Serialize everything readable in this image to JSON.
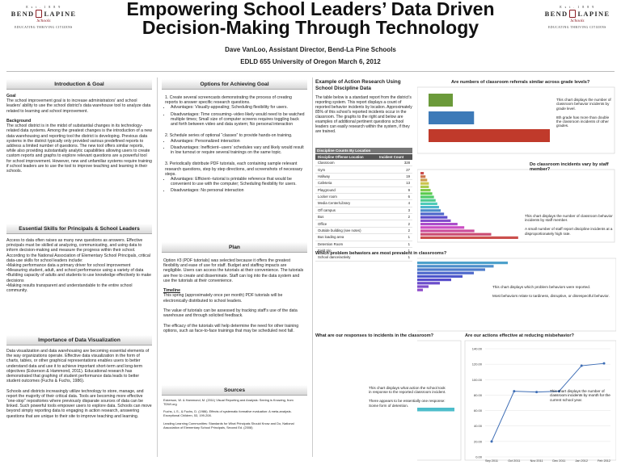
{
  "header": {
    "title_line1": "Empowering School Leaders’ Data Driven",
    "title_line2": "Decision-Making Through Technology",
    "authors": "Dave VanLoo, Assistant Director, Bend-La Pine Schools",
    "venue": "EDLD 655 University of Oregon March 6, 2012",
    "logo": {
      "est": "E s t . 1 8 8 9",
      "name_left": "BEND",
      "name_right": "LAPINE",
      "schools": "Schools",
      "tagline": "EDUCATING THRIVING CITIZENS"
    }
  },
  "col1": {
    "intro_header": "Introduction & Goal",
    "goal_label": "Goal",
    "goal_text": "The school improvement goal is to increase administrators’ and school leaders’ ability to use the school district’s data warehouse tool to analyze data related to learning and school improvement.",
    "background_label": "Background",
    "background_text": "The school district is in the midst of substantial changes in its technology-related data systems. Among the greatest changes is the introduction of a new data warehousing and reporting tool the district is developing. Previous data systems in the district typically only provided various predefined reports to address a limited number of questions. The new tool offers similar reports, while also providing substantially analytic capabilities allowing users to create custom reports and graphs to explore relevant questions are a powerful tool for school improvement. However, new and unfamiliar systems require training if school leaders are to use the tool to improve teaching and learning in their schools.",
    "skills_header": "Essential Skills for Principals & School Leaders",
    "skills_intro": "Access to data often raises as many new questions as answers. Effective principals must be skilled at analyzing, communicating, and using data to inform decision-making and measure the progress within their school. According to the National Association of Elementary School Principals, critical data-use skills for school leaders include:",
    "skills_list": [
      "•Making performance data a primary driver for school improvement",
      "•Measuring student, adult, and school performance using a variety of data",
      "•Building capacity of adults and students to use knowledge effectively to make decisions",
      "•Making results transparent and understandable to the entire school community."
    ],
    "viz_header": "Importance of Data Visualization",
    "viz_p1": "Data visualization and data warehousing are becoming essential elements of the way organizations operate. Effective data visualization in the form of charts, tables, or other graphical representations enables users to better understand data and use it to achieve important short-term and long-term objectives (Eckerson & Hammond, 2011). Educational research has demonstrated that graphing of student performance data leads to better student outcomes (Fuchs & Fuchs, 1986).",
    "viz_p2": "Schools and districts increasingly utilize technology to store, manage, and report the majority of their critical data. Tools are becoming more effective “one-stop” repositories where previously disparate sources of data can be linked. Such powerful tools empower users to explore data. Schools can move beyond simply reporting data to engaging in action research, answering questions that are unique to their site to improve teaching and learning."
  },
  "col2": {
    "options_header": "Options for Achieving Goal",
    "options": [
      {
        "lead": "1. Create several screencasts demonstrating the process of creating reports to answer specific research questions.",
        "adv": "Advantages: Visually-appealing; Scheduling flexibility for users.",
        "dis": "Disadvantages: Time consuming--video likely would need to be watched multiple times; Small size of computer screens requires toggling back and forth between video and data system; No personal interaction"
      },
      {
        "lead": "2. Schedule series of optional “classes” to provide hands-on training.",
        "adv": "Advantages: Personalized interaction",
        "dis": "Disadvantages: Inefficient--users’ schedules vary and likely would result in low turnout or require several trainings on the same topic."
      },
      {
        "lead": "3. Periodically distribute PDF tutorials, each containing sample relevant research questions, step by step directions, and screenshots of necessary steps.",
        "adv": "Advantages: Efficient--tutorial is printable reference that would be convenient to use with the computer; Scheduling flexibility for users.",
        "dis": "Disadvantages: No personal interaction"
      }
    ],
    "plan_header": "Plan",
    "plan_p1": "Option #3 (PDF tutorials) was selected because it offers the greatest flexibility and ease of use for staff. Budget and staffing impacts are negligible. Users can access the tutorials at their convenience. The tutorials are free to create and disseminate. Staff can log into the data system and use the tutorials at their convenience.",
    "timeline_label": "Timeline",
    "timeline_text": "This spring (approximately once per month) PDF tutorials will be electronically distributed to school leaders.",
    "plan_p2": "The value of tutorials can be assessed by tracking staff’s use of the data warehouse and through solicited feedback.",
    "plan_p3": "The efficacy of the tutorials will help determine the need for other training options, such as face-to-face trainings that may be scheduled next fall.",
    "sources_header": "Sources",
    "sources": [
      "Eckerson, W. & Hammond, M. (2011) Visual Reporting and Analysis: Seeing is Knowing, from TDWI.org",
      "Fuchs, L.S., & Fuchs, D. (1986). Effects of systematic formative evaluation: A meta-analysis. Exceptional Children, 53, 199-208.",
      "Leading Learning Communities: Standards for What Principals Should Know and Do, National Association of Elementary School Principals, Second Ed. (2008)"
    ]
  },
  "col3": {
    "example_header": "Example of Action Research Using School Discipline Data",
    "example_text": "The table below is a standard report from the district’s reporting system. This report displays a count of reported behavior incidents by location. Approximately 85% of this school’s reported incidents occur in the classroom. The graphs to the right and below are examples of additional pertinent questions school leaders can easily research within the system, if they are trained.",
    "table_caption": "Discipline Counts By Location",
    "table_headers": [
      "Discipline Offense Location",
      "Incident Count"
    ],
    "table_rows": [
      [
        "Classroom",
        "328"
      ],
      [
        "Gym",
        "27"
      ],
      [
        "Hallway",
        "19"
      ],
      [
        "Cafeteria",
        "13"
      ],
      [
        "Playground",
        "9"
      ],
      [
        "Locker room",
        "6"
      ],
      [
        "Media Center/Library",
        "4"
      ],
      [
        "Off campus",
        "3"
      ],
      [
        "Bus",
        "2"
      ],
      [
        "Office",
        "2"
      ],
      [
        "Outside building (see notes)",
        "2"
      ],
      [
        "Bus loading area",
        "1"
      ],
      [
        "Detention Room",
        "1"
      ],
      [
        "Field trip",
        "1"
      ],
      [
        "School dance/activity",
        "1"
      ]
    ]
  },
  "charts": {
    "c1_title": "Are numbers of classroom referrals similar across grade levels?",
    "c1_note1": "This chart displays the number of classroom behavior incidents by grade level.",
    "c1_note2": "8th grade has more than double the classroom incidents of other grades.",
    "c2_title": "Do classroom incidents vary by staff member?",
    "c2_note1": "This chart displays the number of classroom behavior incidents by staff member.",
    "c2_note2": "A small number of staff report discipline incidents at a disproportionately high rate.",
    "c3_title": "Which problem behaviors are most prevalent in classrooms?",
    "c3_note1": "This chart displays which problem behaviors were reported.",
    "c3_note2": "Most behaviors relate to tardiness, disruptive, or disrespectful behavior.",
    "c4_title": "What are our responses to incidents in the classroom?",
    "c4_note1": "This chart displays what action the school took in response to the reported classroom incident.",
    "c4_note2": "There appears to be essentially one response: Some form of detention.",
    "c5_title": "Are our actions effective at reducing misbehavior?",
    "c5_note": "This chart displays the number of classroom incidents by month for the current school year."
  },
  "chart_data": [
    {
      "type": "bar",
      "title": "Are numbers of classroom referrals similar across grade levels?",
      "categories": [
        "6",
        "7",
        "8"
      ],
      "values": [
        40,
        75,
        200
      ]
    },
    {
      "type": "bar",
      "title": "Do classroom incidents vary by staff member?",
      "values": [
        2,
        3,
        4,
        5,
        5,
        6,
        7,
        8,
        9,
        10,
        11,
        12,
        14,
        16,
        18,
        22,
        26,
        32,
        42,
        58
      ]
    },
    {
      "type": "bar",
      "title": "Which problem behaviors are most prevalent in classrooms?",
      "values": [
        60,
        55,
        52,
        48,
        44,
        40,
        36,
        32,
        30,
        26,
        22,
        20,
        18,
        15,
        12,
        10,
        8,
        6,
        4,
        3
      ]
    },
    {
      "type": "bar",
      "title": "What are our responses to incidents in the classroom?",
      "values": [
        3,
        2,
        4,
        2,
        3,
        2,
        3,
        2,
        4,
        3,
        2,
        300,
        3,
        2,
        2,
        3,
        2,
        3,
        2,
        2
      ]
    },
    {
      "type": "line",
      "title": "Are our actions effective at reducing misbehavior?",
      "x": [
        "Sep 2011",
        "Oct 2011",
        "Nov 2011",
        "Dec 2011",
        "Jan 2012",
        "Feb 2012"
      ],
      "y": [
        20,
        85,
        84,
        85,
        118,
        121
      ],
      "ylim": [
        0,
        140
      ],
      "yticks": [
        "140.00",
        "120.00",
        "100.00",
        "80.00",
        "60.00",
        "40.00",
        "20.00",
        "0.00"
      ]
    }
  ]
}
